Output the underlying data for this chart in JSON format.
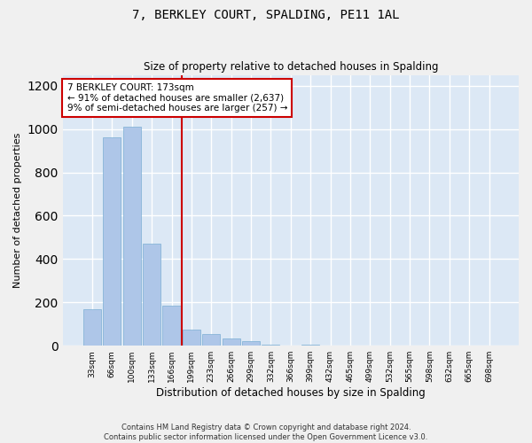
{
  "title": "7, BERKLEY COURT, SPALDING, PE11 1AL",
  "subtitle": "Size of property relative to detached houses in Spalding",
  "xlabel": "Distribution of detached houses by size in Spalding",
  "ylabel": "Number of detached properties",
  "categories": [
    "33sqm",
    "66sqm",
    "100sqm",
    "133sqm",
    "166sqm",
    "199sqm",
    "233sqm",
    "266sqm",
    "299sqm",
    "332sqm",
    "366sqm",
    "399sqm",
    "432sqm",
    "465sqm",
    "499sqm",
    "532sqm",
    "565sqm",
    "598sqm",
    "632sqm",
    "665sqm",
    "698sqm"
  ],
  "values": [
    170,
    960,
    1010,
    470,
    185,
    75,
    55,
    35,
    20,
    5,
    0,
    5,
    0,
    0,
    0,
    0,
    0,
    0,
    0,
    0,
    0
  ],
  "bar_color": "#aec6e8",
  "bar_edge_color": "#7bafd4",
  "property_line_x": 4.5,
  "property_line_color": "#cc0000",
  "annotation_text": "7 BERKLEY COURT: 173sqm\n← 91% of detached houses are smaller (2,637)\n9% of semi-detached houses are larger (257) →",
  "annotation_box_facecolor": "#ffffff",
  "annotation_box_edgecolor": "#cc0000",
  "ylim": [
    0,
    1250
  ],
  "yticks": [
    0,
    200,
    400,
    600,
    800,
    1000,
    1200
  ],
  "background_color": "#dce8f5",
  "fig_facecolor": "#f0f0f0",
  "grid_color": "#ffffff",
  "footer_line1": "Contains HM Land Registry data © Crown copyright and database right 2024.",
  "footer_line2": "Contains public sector information licensed under the Open Government Licence v3.0."
}
